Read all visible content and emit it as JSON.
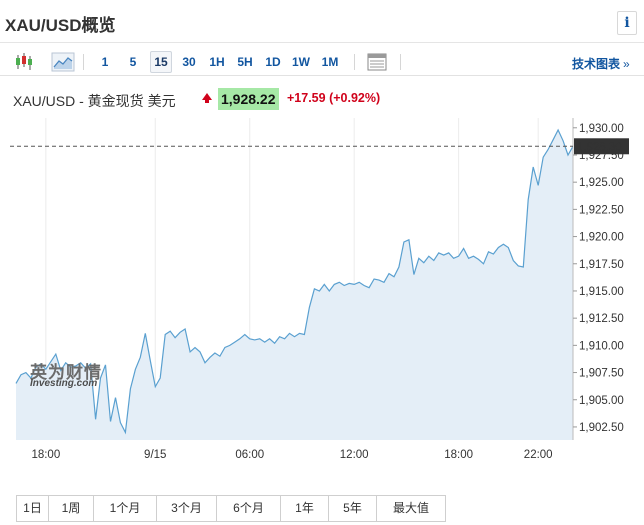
{
  "header": {
    "title": "XAU/USD概览",
    "info_icon": "i"
  },
  "toolbar": {
    "timeframes": [
      "1",
      "5",
      "15",
      "30",
      "1H",
      "5H",
      "1D",
      "1W",
      "1M"
    ],
    "active_timeframe": "15",
    "chart_link": "技术图表",
    "chart_link_arrow": "»",
    "icons": [
      "candlestick-icon",
      "area-chart-icon",
      "table-icon"
    ]
  },
  "quote": {
    "name": "XAU/USD - 黄金现货 美元",
    "price": "1,928.22",
    "change": "+17.59",
    "change_pct": "(+0.92%)",
    "direction": "up",
    "colors": {
      "up": "#d0021b",
      "price_bg": "#a6e8a6"
    }
  },
  "chart_data": {
    "type": "area",
    "x_tick_labels": [
      "18:00",
      "9/15",
      "06:00",
      "12:00",
      "18:00",
      "22:00"
    ],
    "y_tick_labels": [
      "1,930.00",
      "1,927.50",
      "1,925.00",
      "1,922.50",
      "1,920.00",
      "1,917.50",
      "1,915.00",
      "1,912.50",
      "1,910.00",
      "1,907.50",
      "1,905.00",
      "1,902.50"
    ],
    "ylim": [
      1901.3,
      1930.9
    ],
    "current_price_label": "1,928.30",
    "current_price": 1928.3,
    "grid": "vertical",
    "colors": {
      "line": "#5aa0d0",
      "fill": "#e4eef7",
      "grid": "#ececec",
      "current_line": "#555555",
      "current_label_bg": "#333333"
    },
    "x_index_range": [
      0,
      112
    ],
    "x_tick_index": [
      6,
      28,
      47,
      68,
      89,
      105
    ],
    "values": [
      1906.5,
      1907.3,
      1907.5,
      1907.0,
      1908.0,
      1908.3,
      1907.8,
      1908.5,
      1909.2,
      1907.7,
      1908.4,
      1908.0,
      1908.1,
      1908.4,
      1907.9,
      1908.3,
      1903.2,
      1907.0,
      1908.2,
      1903.0,
      1905.2,
      1902.9,
      1902.0,
      1906.0,
      1907.8,
      1908.9,
      1911.1,
      1908.6,
      1906.2,
      1907.0,
      1911.0,
      1911.3,
      1910.7,
      1911.2,
      1911.5,
      1909.4,
      1909.8,
      1909.4,
      1908.4,
      1908.9,
      1909.3,
      1909.0,
      1909.8,
      1910.0,
      1910.3,
      1910.6,
      1911.0,
      1910.6,
      1910.5,
      1910.6,
      1910.3,
      1910.6,
      1910.2,
      1910.8,
      1910.6,
      1911.1,
      1910.8,
      1911.1,
      1911.0,
      1913.5,
      1915.2,
      1915.0,
      1915.6,
      1915.0,
      1915.6,
      1915.8,
      1915.5,
      1915.7,
      1915.6,
      1915.8,
      1915.5,
      1915.3,
      1916.1,
      1916.0,
      1915.8,
      1916.6,
      1916.3,
      1917.2,
      1919.5,
      1919.7,
      1916.5,
      1918.0,
      1917.6,
      1918.2,
      1917.8,
      1918.5,
      1918.3,
      1918.5,
      1918.0,
      1918.2,
      1918.9,
      1918.0,
      1918.2,
      1917.9,
      1917.5,
      1918.6,
      1918.4,
      1919.0,
      1919.3,
      1919.0,
      1917.8,
      1917.3,
      1917.2,
      1923.4,
      1926.4,
      1924.7,
      1927.3,
      1928.0,
      1928.9,
      1929.8,
      1928.8,
      1927.5,
      1928.3
    ]
  },
  "range_buttons": [
    "1日",
    "1周",
    "1个月",
    "3个月",
    "6个月",
    "1年",
    "5年",
    "最大值"
  ],
  "watermark": {
    "cn": "英为财情",
    "en": "Investing.com"
  }
}
